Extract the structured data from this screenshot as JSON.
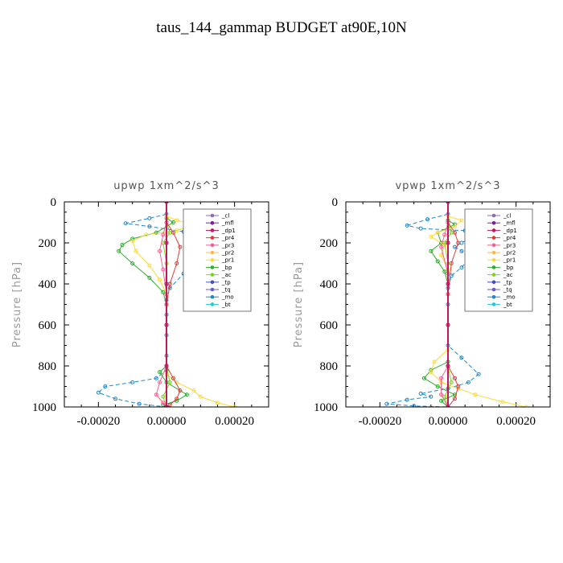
{
  "figure_title": "taus_144_gammap  BUDGET at90E,10N",
  "colors": {
    "_cl": "#8c6bb1",
    "_mfl": "#7b1fa2",
    "_dp1": "#c2185b",
    "_pr4": "#e53935",
    "_pr3": "#f06292",
    "_pr2": "#ffb74d",
    "_pr1": "#fdd835",
    "_bp": "#2eaa2e",
    "_ac": "#7ed321",
    "_tp": "#3f51b5",
    "_tq": "#6a5acd",
    "_mo": "#1e88c8",
    "_bt": "#26c6da"
  },
  "chart_data": [
    {
      "type": "line",
      "title": "upwp   1xm^2/s^3",
      "xlabel": "",
      "ylabel": "Pressure [hPa]",
      "xlim": [
        -0.0003,
        0.0003
      ],
      "ylim": [
        1000,
        0
      ],
      "xticks": [
        "-0.00020",
        "0.00000",
        "0.00020"
      ],
      "yticks": [
        "0",
        "200",
        "400",
        "600",
        "800",
        "1000"
      ],
      "legend": [
        "_cl",
        "_mfl",
        "_dp1",
        "_pr4",
        "_pr3",
        "_pr2",
        "_pr1",
        "_bp",
        "_ac",
        "_tp",
        "_tq",
        "_mo",
        "_bt"
      ],
      "legend_position": "top-right",
      "series": [
        {
          "name": "_mo",
          "x": [
            0,
            -5e-05,
            -0.00012,
            -5e-05,
            5e-05,
            0.00015,
            0.00023,
            0.0002,
            0.00015,
            0.0001,
            5e-05,
            1e-05,
            0,
            0,
            0,
            0,
            0,
            -3e-05,
            -0.0001,
            -0.00018,
            -0.0002,
            -0.00015,
            -8e-05,
            0
          ],
          "y": [
            60,
            80,
            105,
            120,
            145,
            160,
            170,
            200,
            240,
            290,
            350,
            420,
            480,
            550,
            650,
            750,
            820,
            860,
            880,
            900,
            930,
            960,
            985,
            1000
          ]
        },
        {
          "name": "_bp",
          "x": [
            0,
            2e-05,
            -3e-05,
            -0.0001,
            -0.00013,
            -0.00014,
            -0.0001,
            -5e-05,
            -1e-05,
            0,
            0,
            -2e-05,
            0,
            6e-05,
            3e-05,
            -1e-05,
            0
          ],
          "y": [
            80,
            100,
            150,
            180,
            210,
            240,
            300,
            370,
            440,
            500,
            800,
            830,
            880,
            940,
            970,
            990,
            1000
          ]
        },
        {
          "name": "_pr1",
          "x": [
            0,
            3e-05,
            8e-05,
            3e-05,
            -6e-05,
            -0.0001,
            -9e-05,
            -5e-05,
            -2e-05,
            0,
            0,
            3e-05,
            8e-05,
            0.0001,
            0.00015,
            0.0002
          ],
          "y": [
            70,
            90,
            110,
            140,
            160,
            190,
            240,
            310,
            380,
            450,
            840,
            880,
            920,
            950,
            980,
            1000
          ]
        },
        {
          "name": "_ac",
          "x": [
            0,
            1e-05,
            -1e-05,
            0,
            0,
            1e-05,
            -1e-05,
            0
          ],
          "y": [
            100,
            150,
            200,
            300,
            800,
            880,
            950,
            1000
          ]
        },
        {
          "name": "_pr4",
          "x": [
            0,
            2e-05,
            4e-05,
            3e-05,
            1e-05,
            0,
            0,
            2e-05,
            4e-05,
            3e-05,
            1e-05,
            0
          ],
          "y": [
            100,
            150,
            220,
            300,
            400,
            500,
            800,
            860,
            920,
            960,
            990,
            1000
          ]
        },
        {
          "name": "_pr3",
          "x": [
            0,
            -1e-05,
            -2e-05,
            -1e-05,
            0,
            0,
            -2e-05,
            -3e-05,
            -1e-05,
            0
          ],
          "y": [
            100,
            160,
            240,
            330,
            450,
            800,
            880,
            940,
            980,
            1000
          ]
        },
        {
          "name": "_cl",
          "x": [
            0,
            0,
            0,
            0,
            0,
            0
          ],
          "y": [
            0,
            200,
            400,
            600,
            800,
            1000
          ]
        },
        {
          "name": "_mfl",
          "x": [
            0,
            0,
            0,
            0,
            0,
            0
          ],
          "y": [
            0,
            200,
            400,
            600,
            800,
            1000
          ]
        },
        {
          "name": "_dp1",
          "x": [
            0,
            0,
            0,
            0,
            0,
            0
          ],
          "y": [
            0,
            200,
            400,
            600,
            800,
            1000
          ]
        }
      ]
    },
    {
      "type": "line",
      "title": "vpwp   1xm^2/s^3",
      "xlabel": "",
      "ylabel": "Pressure [hPa]",
      "xlim": [
        -0.0003,
        0.0003
      ],
      "ylim": [
        1000,
        0
      ],
      "xticks": [
        "-0.00020",
        "0.00000",
        "0.00020"
      ],
      "yticks": [
        "0",
        "200",
        "400",
        "600",
        "800",
        "1000"
      ],
      "legend": [
        "_cl",
        "_mfl",
        "_dp1",
        "_pr4",
        "_pr3",
        "_pr2",
        "_pr1",
        "_bp",
        "_ac",
        "_tp",
        "_tq",
        "_mo",
        "_bt"
      ],
      "legend_position": "top-right",
      "series": [
        {
          "name": "_mo",
          "x": [
            0,
            -6e-05,
            -0.00012,
            -8e-05,
            5e-05,
            8e-05,
            4e-05,
            2e-05,
            4e-05,
            6e-05,
            4e-05,
            1e-05,
            0,
            0,
            0,
            4e-05,
            9e-05,
            6e-05,
            0,
            -8e-05,
            -5e-05,
            -0.00012,
            -0.00018,
            -0.0001,
            0
          ],
          "y": [
            60,
            85,
            115,
            130,
            140,
            160,
            200,
            220,
            240,
            280,
            320,
            360,
            420,
            500,
            700,
            760,
            840,
            880,
            910,
            935,
            950,
            965,
            985,
            995,
            1000
          ]
        },
        {
          "name": "_bp",
          "x": [
            0,
            2e-05,
            -3e-05,
            -2e-05,
            -5e-05,
            -3e-05,
            -1e-05,
            0,
            0,
            -5e-05,
            -7e-05,
            -3e-05,
            2e-05,
            -2e-05,
            0
          ],
          "y": [
            90,
            110,
            150,
            200,
            240,
            290,
            340,
            400,
            780,
            820,
            860,
            900,
            940,
            970,
            1000
          ]
        },
        {
          "name": "_pr1",
          "x": [
            0,
            4e-05,
            2e-05,
            -3e-05,
            -5e-05,
            -1e-05,
            -2e-05,
            0,
            0,
            -4e-05,
            -5e-05,
            -2e-05,
            3e-05,
            8e-05,
            0.00016,
            0.00023
          ],
          "y": [
            70,
            90,
            120,
            150,
            170,
            210,
            260,
            330,
            720,
            780,
            830,
            880,
            910,
            940,
            975,
            1000
          ]
        },
        {
          "name": "_ac",
          "x": [
            0,
            1e-05,
            -1e-05,
            0,
            0,
            1e-05,
            -1e-05,
            0
          ],
          "y": [
            100,
            150,
            200,
            300,
            800,
            880,
            950,
            1000
          ]
        },
        {
          "name": "_pr4",
          "x": [
            0,
            2e-05,
            3e-05,
            1e-05,
            0,
            0,
            2e-05,
            3e-05,
            2e-05,
            0
          ],
          "y": [
            100,
            150,
            200,
            300,
            450,
            800,
            860,
            900,
            960,
            1000
          ]
        },
        {
          "name": "_pr3",
          "x": [
            0,
            -1e-05,
            -2e-05,
            0,
            0,
            -2e-05,
            -2e-05,
            0
          ],
          "y": [
            100,
            160,
            220,
            350,
            800,
            860,
            940,
            1000
          ]
        },
        {
          "name": "_cl",
          "x": [
            0,
            0,
            0,
            0,
            0,
            0
          ],
          "y": [
            0,
            200,
            400,
            600,
            800,
            1000
          ]
        },
        {
          "name": "_mfl",
          "x": [
            0,
            0,
            0,
            0,
            0,
            0
          ],
          "y": [
            0,
            200,
            400,
            600,
            800,
            1000
          ]
        },
        {
          "name": "_dp1",
          "x": [
            0,
            0,
            0,
            0,
            0,
            0
          ],
          "y": [
            0,
            200,
            400,
            600,
            800,
            1000
          ]
        }
      ]
    }
  ]
}
